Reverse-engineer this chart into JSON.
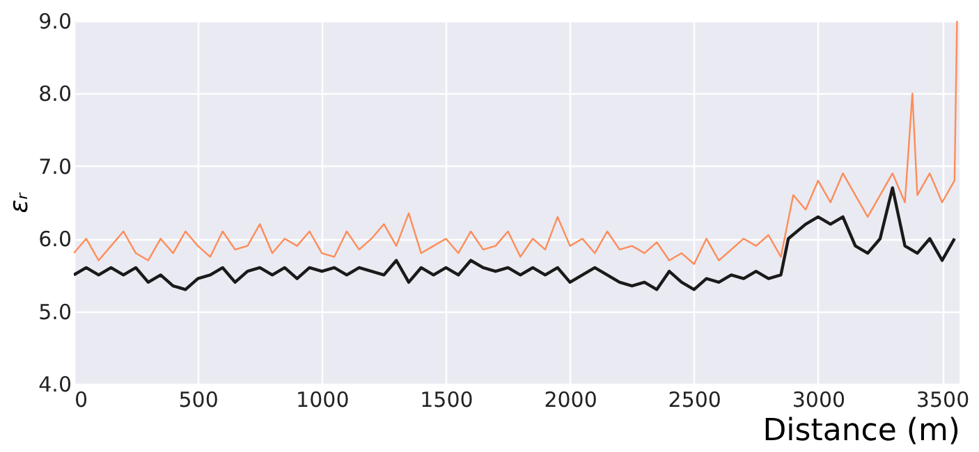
{
  "chart_data": {
    "type": "line",
    "xlabel": "Distance (m)",
    "ylabel": "εᵣ",
    "xlim": [
      0,
      3570
    ],
    "xticks": [
      0,
      500,
      1000,
      1500,
      2000,
      2500,
      3000,
      3500
    ],
    "ylim": [
      4,
      9
    ],
    "yticks": [
      {
        "value": 4,
        "label": "4.0"
      },
      {
        "value": 5,
        "label": "5.0"
      },
      {
        "value": 6,
        "label": "6.0"
      },
      {
        "value": 7,
        "label": "7.0"
      },
      {
        "value": 8,
        "label": "8.0"
      },
      {
        "value": 9,
        "label": "9.0"
      }
    ],
    "grid": true,
    "marker": "none",
    "line_style": "solid",
    "series": [
      {
        "color": "#fc8d59",
        "x": [
          0,
          50,
          100,
          150,
          200,
          250,
          300,
          350,
          400,
          450,
          500,
          550,
          600,
          650,
          700,
          750,
          800,
          850,
          900,
          950,
          1000,
          1050,
          1100,
          1150,
          1200,
          1250,
          1300,
          1350,
          1400,
          1450,
          1500,
          1550,
          1600,
          1650,
          1700,
          1750,
          1800,
          1850,
          1900,
          1950,
          2000,
          2050,
          2100,
          2150,
          2200,
          2250,
          2300,
          2350,
          2400,
          2450,
          2500,
          2550,
          2600,
          2650,
          2700,
          2750,
          2800,
          2850,
          2900,
          2950,
          3000,
          3050,
          3100,
          3150,
          3200,
          3250,
          3300,
          3350,
          3380,
          3400,
          3450,
          3500,
          3550,
          3560
        ],
        "values": [
          5.8,
          6.0,
          5.7,
          5.9,
          6.1,
          5.8,
          5.7,
          6.0,
          5.8,
          6.1,
          5.9,
          5.75,
          6.1,
          5.85,
          5.9,
          6.2,
          5.8,
          6.0,
          5.9,
          6.1,
          5.8,
          5.75,
          6.1,
          5.85,
          6.0,
          6.2,
          5.9,
          6.35,
          5.8,
          5.9,
          6.0,
          5.8,
          6.1,
          5.85,
          5.9,
          6.1,
          5.75,
          6.0,
          5.85,
          6.3,
          5.9,
          6.0,
          5.8,
          6.1,
          5.85,
          5.9,
          5.8,
          5.95,
          5.7,
          5.8,
          5.65,
          6.0,
          5.7,
          5.85,
          6.0,
          5.9,
          6.05,
          5.75,
          6.6,
          6.4,
          6.8,
          6.5,
          6.9,
          6.6,
          6.3,
          6.6,
          6.9,
          6.5,
          8.0,
          6.6,
          6.9,
          6.5,
          6.8,
          9.0
        ]
      },
      {
        "color": "#1a1a1a",
        "x": [
          0,
          50,
          100,
          150,
          200,
          250,
          300,
          350,
          400,
          450,
          500,
          550,
          600,
          650,
          700,
          750,
          800,
          850,
          900,
          950,
          1000,
          1050,
          1100,
          1150,
          1200,
          1250,
          1300,
          1350,
          1400,
          1450,
          1500,
          1550,
          1600,
          1650,
          1700,
          1750,
          1800,
          1850,
          1900,
          1950,
          2000,
          2050,
          2100,
          2150,
          2200,
          2250,
          2300,
          2350,
          2400,
          2450,
          2500,
          2550,
          2600,
          2650,
          2700,
          2750,
          2800,
          2850,
          2880,
          2950,
          3000,
          3050,
          3100,
          3150,
          3200,
          3250,
          3300,
          3350,
          3400,
          3450,
          3500,
          3550
        ],
        "values": [
          5.5,
          5.6,
          5.5,
          5.6,
          5.5,
          5.6,
          5.4,
          5.5,
          5.35,
          5.3,
          5.45,
          5.5,
          5.6,
          5.4,
          5.55,
          5.6,
          5.5,
          5.6,
          5.45,
          5.6,
          5.55,
          5.6,
          5.5,
          5.6,
          5.55,
          5.5,
          5.7,
          5.4,
          5.6,
          5.5,
          5.6,
          5.5,
          5.7,
          5.6,
          5.55,
          5.6,
          5.5,
          5.6,
          5.5,
          5.6,
          5.4,
          5.5,
          5.6,
          5.5,
          5.4,
          5.35,
          5.4,
          5.3,
          5.55,
          5.4,
          5.3,
          5.45,
          5.4,
          5.5,
          5.45,
          5.55,
          5.45,
          5.5,
          6.0,
          6.2,
          6.3,
          6.2,
          6.3,
          5.9,
          5.8,
          6.0,
          6.7,
          5.9,
          5.8,
          6.0,
          5.7,
          6.0
        ]
      }
    ]
  }
}
